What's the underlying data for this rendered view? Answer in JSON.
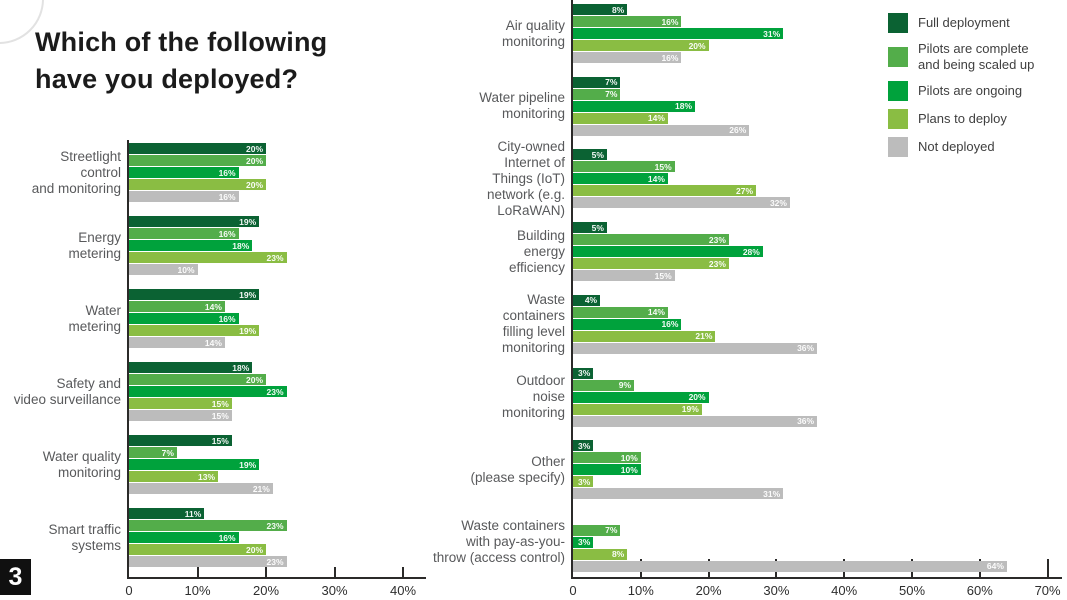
{
  "title": "Which of the following\nhave you deployed?",
  "page_badge": "3",
  "colors": {
    "full": "#0b6233",
    "complete": "#53ad4a",
    "ongoing": "#00a23c",
    "plans": "#8abd43",
    "not_deployed": "#bcbcbc",
    "axis": "#2b2a29",
    "category_text": "#58595b"
  },
  "legend": [
    {
      "label": "Full deployment",
      "color_key": "full"
    },
    {
      "label": "Pilots are complete\nand being scaled up",
      "color_key": "complete"
    },
    {
      "label": "Pilots are ongoing",
      "color_key": "ongoing"
    },
    {
      "label": "Plans to deploy",
      "color_key": "plans"
    },
    {
      "label": "Not deployed",
      "color_key": "not_deployed"
    }
  ],
  "chart_data": [
    {
      "type": "bar",
      "orientation": "horizontal",
      "unit": "%",
      "xlim": [
        0,
        40
      ],
      "tick_labels": [
        "0",
        "10%",
        "20%",
        "30%",
        "40%"
      ],
      "grid": false,
      "legend_position": "top-right",
      "categories": [
        "Streetlight control and monitoring",
        "Energy metering",
        "Water metering",
        "Safety and video surveillance",
        "Water quality monitoring",
        "Smart traffic systems"
      ],
      "categories_display": [
        "Streetlight\ncontrol\nand monitoring",
        "Energy\nmetering",
        "Water\nmetering",
        "Safety and\nvideo surveillance",
        "Water quality\nmonitoring",
        "Smart traffic\nsystems"
      ],
      "series": [
        {
          "name": "Full deployment",
          "values": [
            20,
            19,
            19,
            18,
            15,
            11
          ]
        },
        {
          "name": "Pilots are complete and being scaled up",
          "values": [
            20,
            16,
            14,
            20,
            7,
            23
          ]
        },
        {
          "name": "Pilots are ongoing",
          "values": [
            16,
            18,
            16,
            23,
            19,
            16
          ]
        },
        {
          "name": "Plans to deploy",
          "values": [
            20,
            23,
            19,
            15,
            13,
            20
          ]
        },
        {
          "name": "Not deployed",
          "values": [
            16,
            10,
            14,
            15,
            21,
            23
          ]
        }
      ]
    },
    {
      "type": "bar",
      "orientation": "horizontal",
      "unit": "%",
      "xlim": [
        0,
        70
      ],
      "tick_labels": [
        "0",
        "10%",
        "20%",
        "30%",
        "40%",
        "50%",
        "60%",
        "70%"
      ],
      "grid": false,
      "legend_position": "top-right",
      "categories": [
        "Air quality monitoring",
        "Water pipeline monitoring",
        "City-owned Internet of Things (IoT) network (e.g. LoRaWAN)",
        "Building energy efficiency",
        "Waste containers filling level monitoring",
        "Outdoor noise monitoring",
        "Other (please specify)",
        "Waste containers with pay-as-you-throw (access control)"
      ],
      "categories_display": [
        "Air quality\nmonitoring",
        "Water pipeline\nmonitoring",
        "City-owned\nInternet of\nThings (IoT)\nnetwork (e.g.\nLoRaWAN)",
        "Building\nenergy\nefficiency",
        "Waste\ncontainers\nfilling level\nmonitoring",
        "Outdoor\nnoise\nmonitoring",
        "Other\n(please specify)",
        "Waste containers\nwith pay-as-you-\nthrow (access control)"
      ],
      "series": [
        {
          "name": "Full deployment",
          "values": [
            8,
            7,
            5,
            5,
            4,
            3,
            3,
            0
          ]
        },
        {
          "name": "Pilots are complete and being scaled up",
          "values": [
            16,
            7,
            15,
            23,
            14,
            9,
            10,
            7
          ]
        },
        {
          "name": "Pilots are ongoing",
          "values": [
            31,
            18,
            14,
            28,
            16,
            20,
            10,
            3
          ]
        },
        {
          "name": "Plans to deploy",
          "values": [
            20,
            14,
            27,
            23,
            21,
            19,
            3,
            8
          ]
        },
        {
          "name": "Not deployed",
          "values": [
            16,
            26,
            32,
            15,
            36,
            36,
            31,
            64
          ]
        }
      ]
    }
  ]
}
